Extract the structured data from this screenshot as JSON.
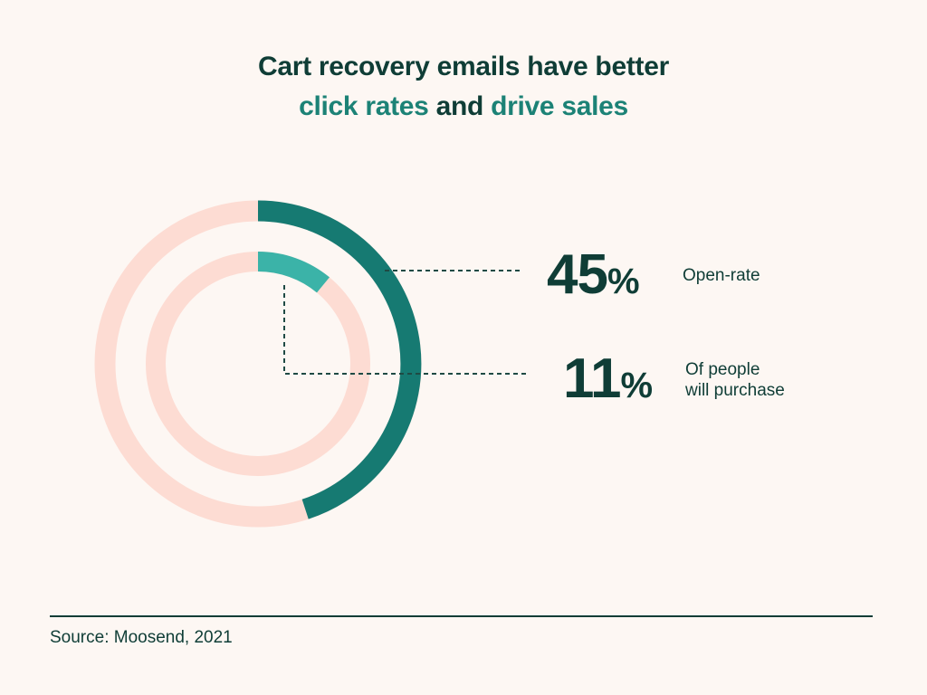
{
  "title": {
    "line1": "Cart recovery emails have better",
    "highlight1": "click rates",
    "connector": " and ",
    "highlight2": "drive sales"
  },
  "chart_data": {
    "type": "donut",
    "series": [
      {
        "name": "Open-rate",
        "value": 45,
        "value_label": "45",
        "unit": "%",
        "ring": "outer",
        "color": "#167a72"
      },
      {
        "name": "Of people will purchase",
        "value": 11,
        "value_label": "11",
        "unit": "%",
        "ring": "inner",
        "color": "#3bb3a8"
      }
    ],
    "track_color": "#fddcd3",
    "label_lines": [
      "Of people",
      "will purchase"
    ]
  },
  "source": "Source: Moosend, 2021"
}
